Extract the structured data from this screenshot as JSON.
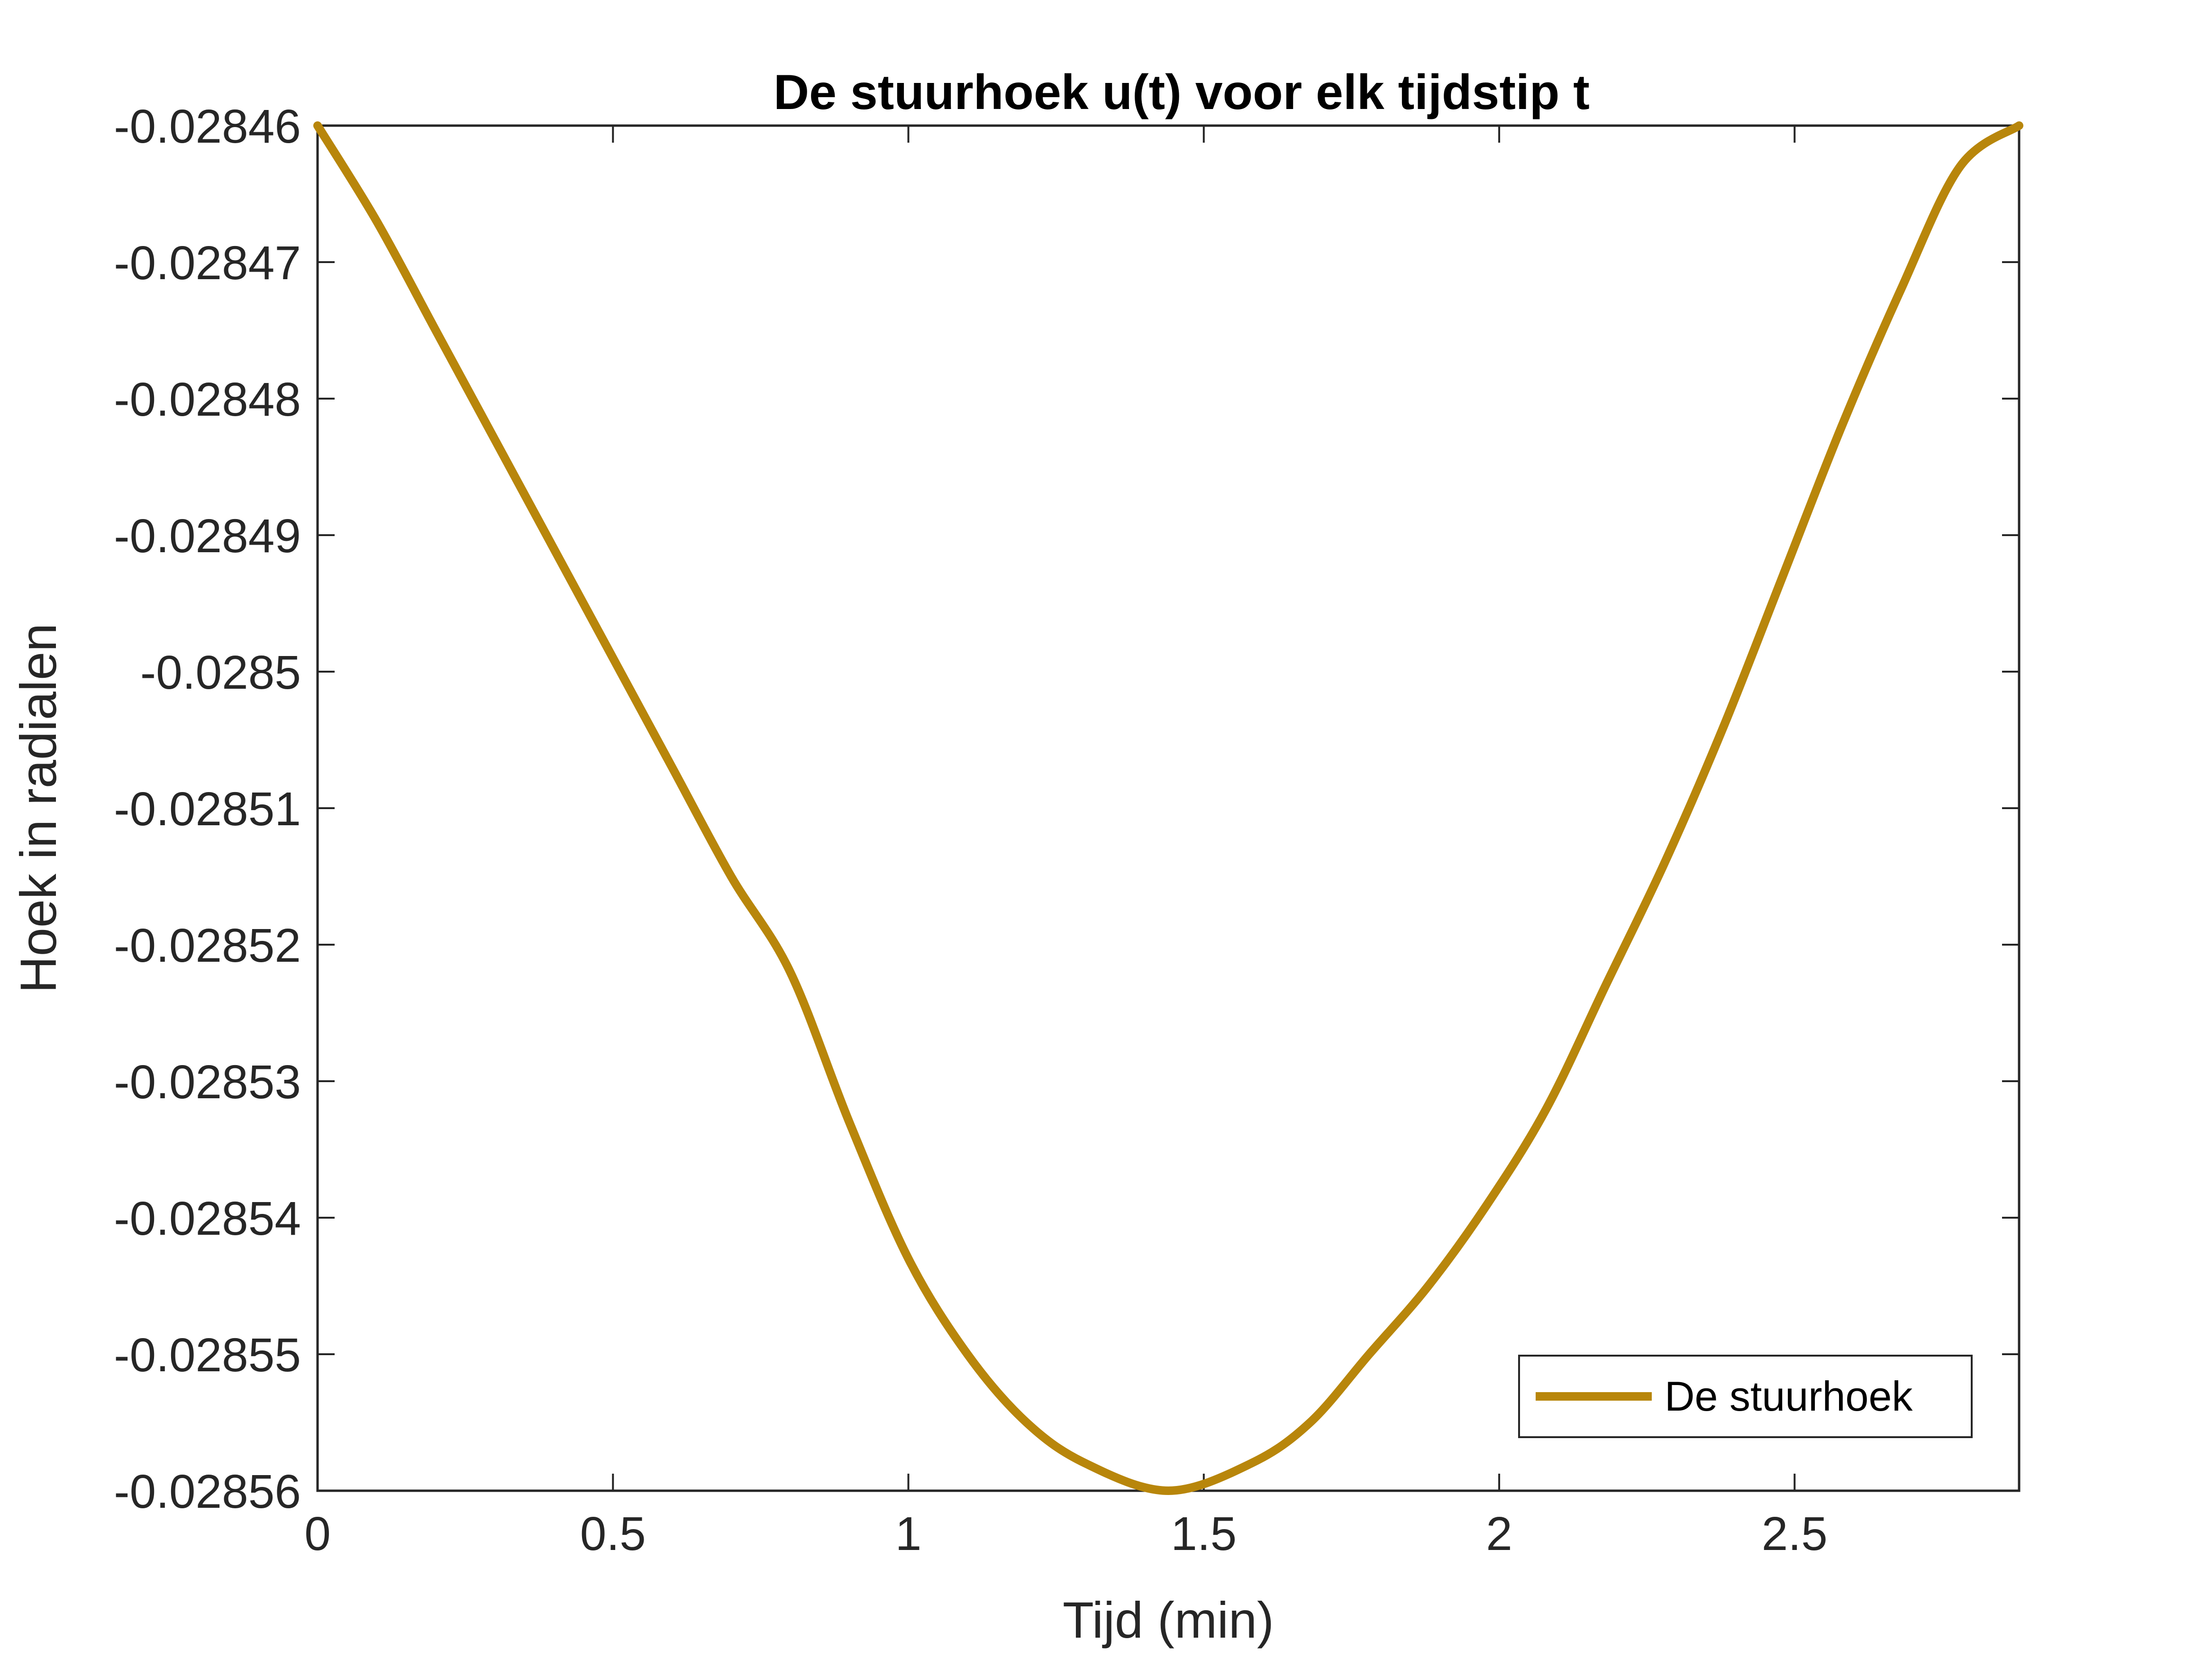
{
  "chart_data": {
    "type": "line",
    "title": "De stuurhoek u(t) voor elk tijdstip t",
    "xlabel": "Tijd (min)",
    "ylabel": "Hoek in radialen",
    "xlim": [
      0,
      2.88
    ],
    "ylim": [
      -0.02856,
      -0.02846
    ],
    "xticks": [
      0,
      0.5,
      1,
      1.5,
      2,
      2.5
    ],
    "xtick_labels": [
      "0",
      "0.5",
      "1",
      "1.5",
      "2",
      "2.5"
    ],
    "yticks": [
      -0.02846,
      -0.02847,
      -0.02848,
      -0.02849,
      -0.0285,
      -0.02851,
      -0.02852,
      -0.02853,
      -0.02854,
      -0.02855,
      -0.02856
    ],
    "ytick_labels": [
      "-0.02846",
      "-0.02847",
      "-0.02848",
      "-0.02849",
      "-0.0285",
      "-0.02851",
      "-0.02852",
      "-0.02853",
      "-0.02854",
      "-0.02855",
      "-0.02856"
    ],
    "grid": false,
    "legend_position": "bottom-right",
    "series": [
      {
        "name": "De stuurhoek",
        "color": "#B8860B",
        "x": [
          0,
          0.1,
          0.2,
          0.3,
          0.4,
          0.5,
          0.6,
          0.7,
          0.8,
          0.9,
          1.0,
          1.1,
          1.2,
          1.3,
          1.44,
          1.58,
          1.68,
          1.78,
          1.88,
          1.98,
          2.08,
          2.18,
          2.28,
          2.38,
          2.48,
          2.58,
          2.68,
          2.78,
          2.88
        ],
        "y": [
          -0.02846,
          -0.028467,
          -0.028475,
          -0.028483,
          -0.028491,
          -0.028499,
          -0.028507,
          -0.028515,
          -0.028522,
          -0.028533,
          -0.028543,
          -0.02855,
          -0.028555,
          -0.028558,
          -0.02856,
          -0.028558,
          -0.028555,
          -0.02855,
          -0.028545,
          -0.028539,
          -0.028532,
          -0.028523,
          -0.028514,
          -0.028504,
          -0.028493,
          -0.028482,
          -0.028472,
          -0.028463,
          -0.02846
        ]
      }
    ]
  }
}
